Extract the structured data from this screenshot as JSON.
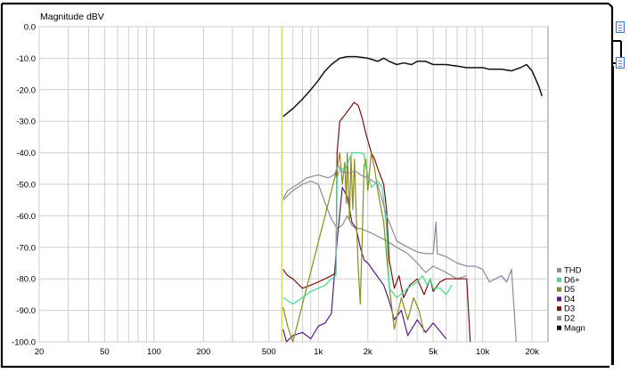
{
  "chart_data": {
    "type": "line",
    "ylabel": "Magnitude dBV",
    "x_scale": "log",
    "xlim": [
      20,
      25000
    ],
    "ylim": [
      -100,
      0
    ],
    "x_ticks": [
      {
        "value": 20,
        "label": "20"
      },
      {
        "value": 50,
        "label": "50"
      },
      {
        "value": 100,
        "label": "100"
      },
      {
        "value": 200,
        "label": "200"
      },
      {
        "value": 500,
        "label": "500"
      },
      {
        "value": 1000,
        "label": "1k"
      },
      {
        "value": 2000,
        "label": "2k"
      },
      {
        "value": 5000,
        "label": "5k"
      },
      {
        "value": 10000,
        "label": "10k"
      },
      {
        "value": 20000,
        "label": "20k"
      }
    ],
    "y_ticks": [
      {
        "value": 0,
        "label": "0.0"
      },
      {
        "value": -10,
        "label": "-10.0"
      },
      {
        "value": -20,
        "label": "-20.0"
      },
      {
        "value": -30,
        "label": "-30.0"
      },
      {
        "value": -40,
        "label": "-40.0"
      },
      {
        "value": -50,
        "label": "-50.0"
      },
      {
        "value": -60,
        "label": "-60.0"
      },
      {
        "value": -70,
        "label": "-70.0"
      },
      {
        "value": -80,
        "label": "-80.0"
      },
      {
        "value": -90,
        "label": "-90.0"
      },
      {
        "value": -100,
        "label": "-100.0"
      }
    ],
    "grid": true,
    "legend_position": "bottom-right",
    "marker_line": {
      "x": 600,
      "color": "#d8d860"
    },
    "series": [
      {
        "name": "THD",
        "color": "#8a8aa2",
        "points": [
          [
            610,
            -54.6
          ],
          [
            650,
            -52
          ],
          [
            750,
            -50
          ],
          [
            850,
            -48
          ],
          [
            1000,
            -47
          ],
          [
            1150,
            -48
          ],
          [
            1250,
            -47
          ],
          [
            1320,
            -44
          ],
          [
            1400,
            -46
          ],
          [
            1500,
            -46.5
          ],
          [
            1600,
            -46
          ],
          [
            1700,
            -46
          ],
          [
            1800,
            -47
          ],
          [
            2000,
            -48
          ],
          [
            2300,
            -50
          ],
          [
            2600,
            -60
          ],
          [
            2800,
            -64
          ],
          [
            3000,
            -68
          ],
          [
            3500,
            -70
          ],
          [
            4000,
            -71.5
          ],
          [
            4500,
            -72
          ],
          [
            5000,
            -72
          ],
          [
            5200,
            -62
          ],
          [
            5300,
            -72
          ],
          [
            6000,
            -73
          ],
          [
            7000,
            -75
          ],
          [
            8000,
            -76
          ],
          [
            9000,
            -76
          ],
          [
            10000,
            -77
          ],
          [
            11000,
            -81
          ],
          [
            12000,
            -80
          ],
          [
            13000,
            -79
          ],
          [
            14000,
            -81
          ],
          [
            15000,
            -77
          ],
          [
            16000,
            -100
          ]
        ]
      },
      {
        "name": "D6+",
        "color": "#44dc8c",
        "points": [
          [
            610,
            -86
          ],
          [
            700,
            -88
          ],
          [
            800,
            -86
          ],
          [
            900,
            -84
          ],
          [
            1000,
            -83
          ],
          [
            1100,
            -82
          ],
          [
            1200,
            -80
          ],
          [
            1280,
            -79
          ],
          [
            1300,
            -48
          ],
          [
            1350,
            -45
          ],
          [
            1450,
            -45.5
          ],
          [
            1600,
            -40
          ],
          [
            1800,
            -40
          ],
          [
            1900,
            -40.5
          ],
          [
            1950,
            -45
          ],
          [
            2000,
            -47
          ],
          [
            2100,
            -51
          ],
          [
            2200,
            -50
          ],
          [
            2300,
            -49
          ],
          [
            2450,
            -51
          ],
          [
            2600,
            -64
          ],
          [
            2700,
            -83
          ],
          [
            2800,
            -84
          ],
          [
            3000,
            -86
          ],
          [
            3500,
            -83
          ],
          [
            4000,
            -81
          ],
          [
            4300,
            -79
          ],
          [
            4600,
            -82
          ],
          [
            4800,
            -80
          ],
          [
            5000,
            -83
          ],
          [
            5500,
            -83
          ],
          [
            6000,
            -85
          ],
          [
            6500,
            -82
          ]
        ]
      },
      {
        "name": "D5",
        "color": "#8c8c1c",
        "points": [
          [
            610,
            -89
          ],
          [
            650,
            -95
          ],
          [
            700,
            -100
          ],
          [
            1300,
            -45
          ],
          [
            1350,
            -40
          ],
          [
            1400,
            -50
          ],
          [
            1450,
            -43
          ],
          [
            1480,
            -56
          ],
          [
            1500,
            -40
          ],
          [
            1550,
            -61
          ],
          [
            1580,
            -41
          ],
          [
            1620,
            -58
          ],
          [
            1660,
            -42
          ],
          [
            1700,
            -59
          ],
          [
            1750,
            -77
          ],
          [
            1800,
            -88
          ],
          [
            1850,
            -67
          ],
          [
            1900,
            -44
          ],
          [
            1950,
            -42
          ],
          [
            2000,
            -52
          ],
          [
            2100,
            -40
          ],
          [
            2200,
            -45
          ],
          [
            2300,
            -52
          ],
          [
            2500,
            -62
          ],
          [
            2700,
            -82
          ],
          [
            2900,
            -96
          ],
          [
            3200,
            -86
          ],
          [
            3500,
            -93
          ],
          [
            3800,
            -86
          ],
          [
            4100,
            -90
          ],
          [
            4400,
            -97
          ]
        ]
      },
      {
        "name": "D4",
        "color": "#5a1a82",
        "points": [
          [
            610,
            -96
          ],
          [
            640,
            -100
          ],
          [
            700,
            -98
          ],
          [
            800,
            -97
          ],
          [
            900,
            -99
          ],
          [
            1000,
            -95
          ],
          [
            1100,
            -94
          ],
          [
            1200,
            -91
          ],
          [
            1300,
            -68
          ],
          [
            1400,
            -51
          ],
          [
            1500,
            -54
          ],
          [
            1600,
            -62
          ],
          [
            1700,
            -64
          ],
          [
            1800,
            -70
          ],
          [
            1900,
            -74
          ],
          [
            2000,
            -75
          ],
          [
            2200,
            -78
          ],
          [
            2500,
            -82
          ],
          [
            2700,
            -87
          ],
          [
            2900,
            -93
          ],
          [
            3200,
            -90
          ],
          [
            3500,
            -98
          ],
          [
            4000,
            -93
          ],
          [
            4500,
            -97
          ],
          [
            5000,
            -94
          ],
          [
            6000,
            -99
          ]
        ]
      },
      {
        "name": "D3",
        "color": "#7a1212",
        "points": [
          [
            610,
            -77
          ],
          [
            650,
            -79
          ],
          [
            700,
            -80
          ],
          [
            800,
            -83
          ],
          [
            900,
            -82
          ],
          [
            1000,
            -81
          ],
          [
            1100,
            -80
          ],
          [
            1200,
            -79
          ],
          [
            1280,
            -78
          ],
          [
            1300,
            -40
          ],
          [
            1350,
            -30
          ],
          [
            1450,
            -28
          ],
          [
            1550,
            -26
          ],
          [
            1650,
            -24
          ],
          [
            1750,
            -25
          ],
          [
            1850,
            -29
          ],
          [
            1950,
            -34
          ],
          [
            2100,
            -40
          ],
          [
            2200,
            -42
          ],
          [
            2300,
            -45
          ],
          [
            2500,
            -50
          ],
          [
            2600,
            -58
          ],
          [
            2700,
            -74
          ],
          [
            2900,
            -83
          ],
          [
            3100,
            -79
          ],
          [
            3300,
            -86
          ],
          [
            3600,
            -82
          ],
          [
            4000,
            -80
          ],
          [
            4400,
            -85
          ],
          [
            4800,
            -80
          ],
          [
            5000,
            -84
          ],
          [
            5500,
            -81
          ],
          [
            6000,
            -80
          ],
          [
            7000,
            -80
          ],
          [
            8000,
            -80
          ],
          [
            8400,
            -100
          ]
        ]
      },
      {
        "name": "D2",
        "color": "#8c8c8c",
        "points": [
          [
            610,
            -55
          ],
          [
            700,
            -52
          ],
          [
            800,
            -50
          ],
          [
            900,
            -49
          ],
          [
            1000,
            -50
          ],
          [
            1100,
            -56
          ],
          [
            1200,
            -61
          ],
          [
            1300,
            -64
          ],
          [
            1400,
            -63
          ],
          [
            1500,
            -60
          ],
          [
            1600,
            -63
          ],
          [
            1700,
            -64
          ],
          [
            1800,
            -64
          ],
          [
            2000,
            -65
          ],
          [
            2200,
            -66
          ],
          [
            2400,
            -67
          ],
          [
            2600,
            -68
          ],
          [
            2800,
            -69
          ],
          [
            3000,
            -70
          ],
          [
            3500,
            -72
          ],
          [
            4000,
            -75
          ],
          [
            4500,
            -78
          ],
          [
            5000,
            -76
          ],
          [
            6000,
            -78
          ],
          [
            7000,
            -80
          ],
          [
            8000,
            -79
          ]
        ]
      },
      {
        "name": "Magn",
        "color": "#111111",
        "points": [
          [
            610,
            -28.5
          ],
          [
            700,
            -26
          ],
          [
            800,
            -23
          ],
          [
            900,
            -20
          ],
          [
            1000,
            -17
          ],
          [
            1100,
            -14
          ],
          [
            1200,
            -12
          ],
          [
            1350,
            -10
          ],
          [
            1500,
            -9.5
          ],
          [
            1700,
            -9.5
          ],
          [
            2000,
            -10
          ],
          [
            2300,
            -11
          ],
          [
            2500,
            -10
          ],
          [
            2700,
            -11
          ],
          [
            3000,
            -12
          ],
          [
            3300,
            -11.5
          ],
          [
            3700,
            -12
          ],
          [
            4000,
            -11
          ],
          [
            4500,
            -11
          ],
          [
            5000,
            -12
          ],
          [
            6000,
            -12
          ],
          [
            7000,
            -12.5
          ],
          [
            8000,
            -13
          ],
          [
            9000,
            -13
          ],
          [
            10000,
            -13
          ],
          [
            11000,
            -13.5
          ],
          [
            13000,
            -13.5
          ],
          [
            15000,
            -14
          ],
          [
            17000,
            -13
          ],
          [
            18500,
            -12
          ],
          [
            20000,
            -14
          ],
          [
            22000,
            -19
          ],
          [
            23000,
            -22
          ]
        ]
      }
    ]
  },
  "side_buttons": [
    {
      "icon": "document-icon"
    },
    {
      "icon": "document-icon"
    }
  ]
}
